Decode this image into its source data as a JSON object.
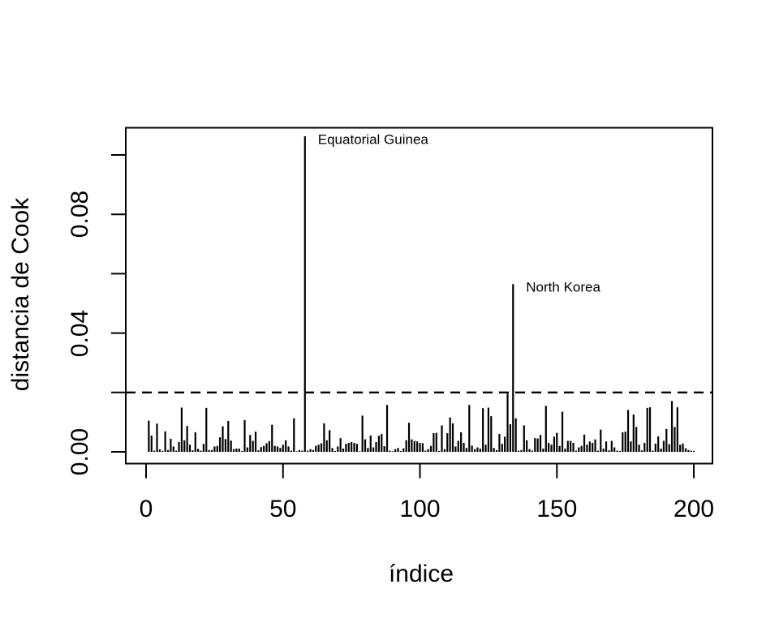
{
  "chart_data": {
    "type": "bar",
    "subtype": "spike-plot (R type='h' Cook's distance)",
    "title": "",
    "xlabel": "índice",
    "ylabel": "distancia de Cook",
    "x_range": [
      1,
      200
    ],
    "x_note": "bars at sequential indices 1..200",
    "xlim": [
      -7.41,
      206.8
    ],
    "ylim": [
      -0.00396,
      0.10916
    ],
    "grid": "off",
    "legend": "none",
    "x_ticks": {
      "values": [
        0,
        50,
        100,
        150,
        200
      ],
      "labels": [
        "0",
        "50",
        "100",
        "150",
        "200"
      ]
    },
    "y_ticks": {
      "values": [
        0,
        0.02,
        0.04,
        0.06,
        0.08,
        0.1
      ],
      "labels": [
        "0.00",
        "",
        "0.04",
        "",
        "0.08",
        ""
      ]
    },
    "threshold_line": {
      "y": 0.02,
      "style": "dashed",
      "color": "#000000"
    },
    "values": [
      0.0105,
      0.0055,
      0.0004,
      0.0095,
      0.0008,
      0.0003,
      0.0069,
      0.0006,
      0.0044,
      0.0018,
      0.0004,
      0.0033,
      0.0149,
      0.0039,
      0.0087,
      0.0024,
      0.0005,
      0.0066,
      0.001,
      0.0004,
      0.0027,
      0.0148,
      0.0006,
      0.0006,
      0.0018,
      0.002,
      0.0049,
      0.0086,
      0.0043,
      0.0104,
      0.0038,
      0.0009,
      0.0011,
      0.0011,
      0.0003,
      0.0107,
      0.0015,
      0.0057,
      0.0037,
      0.0068,
      0.0005,
      0.0016,
      0.002,
      0.0029,
      0.0036,
      0.0091,
      0.002,
      0.0018,
      0.0013,
      0.0024,
      0.0039,
      0.0018,
      0.0004,
      0.0113,
      0.0002,
      0.0006,
      0.0004,
      0.1063,
      0.0004,
      0.0009,
      0.0006,
      0.002,
      0.0024,
      0.0029,
      0.0096,
      0.0039,
      0.0073,
      0.0013,
      0.0003,
      0.0018,
      0.0046,
      0.0011,
      0.0027,
      0.003,
      0.0033,
      0.003,
      0.0027,
      0.0002,
      0.0122,
      0.0042,
      0.0013,
      0.0055,
      0.0015,
      0.0033,
      0.0054,
      0.006,
      0.0019,
      0.0158,
      0.0004,
      0.0002,
      0.0009,
      0.0013,
      0.0003,
      0.0012,
      0.0039,
      0.0098,
      0.0042,
      0.0037,
      0.0035,
      0.003,
      0.0029,
      0.0004,
      0.0009,
      0.002,
      0.0063,
      0.0064,
      0.0003,
      0.0089,
      0.0009,
      0.0063,
      0.0116,
      0.0096,
      0.0018,
      0.0037,
      0.0066,
      0.003,
      0.0013,
      0.0158,
      0.0021,
      0.0009,
      0.0015,
      0.0011,
      0.0147,
      0.0024,
      0.0149,
      0.012,
      0.0013,
      0.0006,
      0.006,
      0.0027,
      0.0051,
      0.0196,
      0.0093,
      0.0565,
      0.0113,
      0.0004,
      0.0006,
      0.0089,
      0.0039,
      0.0009,
      0.0004,
      0.0046,
      0.0045,
      0.0057,
      0.0011,
      0.0155,
      0.003,
      0.0024,
      0.0051,
      0.0064,
      0.002,
      0.0135,
      0.0011,
      0.0037,
      0.0037,
      0.003,
      0.0004,
      0.0015,
      0.002,
      0.0058,
      0.0024,
      0.0035,
      0.003,
      0.0042,
      0.0004,
      0.0075,
      0.0011,
      0.0035,
      0.0005,
      0.0037,
      0.0015,
      0.0004,
      0.0003,
      0.0066,
      0.0068,
      0.0141,
      0.0035,
      0.0126,
      0.0084,
      0.0024,
      0.0005,
      0.003,
      0.0148,
      0.015,
      0.0004,
      0.0028,
      0.0052,
      0.0011,
      0.0037,
      0.0077,
      0.0026,
      0.0171,
      0.0084,
      0.015,
      0.0024,
      0.0028,
      0.0012,
      0.0006,
      0.0004,
      0.0003
    ],
    "annotations": [
      {
        "text": "Equatorial Guinea",
        "x": 58,
        "y": 0.1063
      },
      {
        "text": "North Korea",
        "x": 134,
        "y": 0.0565
      }
    ],
    "colors": {
      "foreground": "#000000",
      "background": "#ffffff"
    }
  }
}
